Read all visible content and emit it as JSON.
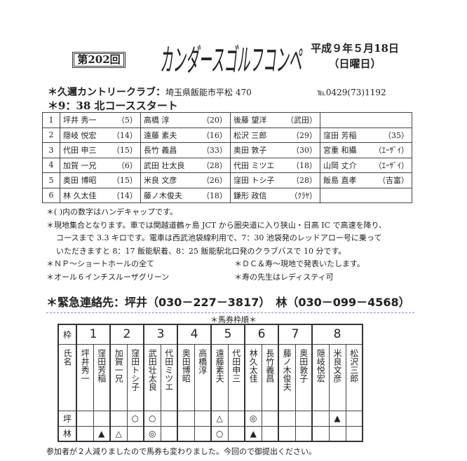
{
  "header": {
    "round": "第202回",
    "title": "カンダースゴルフコンペ",
    "date": "平成９年５月18日",
    "weekday": "（日曜日）"
  },
  "venue": {
    "name": "＊久邇カントリークラブ：",
    "address": "埼玉県飯能市平松 470",
    "tel": "℡0429(73)1192"
  },
  "start": "＊9：38 北コーススタート",
  "groups": [
    {
      "no": "1",
      "players": [
        {
          "name": "坪井 秀一",
          "hc": "（5）"
        },
        {
          "name": "高橋 淳",
          "hc": "（20）"
        },
        {
          "name": "後藤 望洋",
          "hc": "（武田）"
        },
        {
          "name": "",
          "hc": ""
        }
      ]
    },
    {
      "no": "2",
      "players": [
        {
          "name": "隠岐 悦宏",
          "hc": "（14）"
        },
        {
          "name": "遠藤 素夫",
          "hc": "（16）"
        },
        {
          "name": "松沢 三郎",
          "hc": "（29）"
        },
        {
          "name": "窪田 芳稲",
          "hc": "（35）"
        }
      ]
    },
    {
      "no": "3",
      "players": [
        {
          "name": "代田 申三",
          "hc": "（15）"
        },
        {
          "name": "長竹 義昌",
          "hc": "（33）"
        },
        {
          "name": "奥田 敦子",
          "hc": "（30）"
        },
        {
          "name": "宮重 和攝",
          "hc": "（ｴｰｻﾞｲ）"
        }
      ]
    },
    {
      "no": "4",
      "players": [
        {
          "name": "加賀 一兄",
          "hc": "（6）"
        },
        {
          "name": "武田 壮太良",
          "hc": "（28）"
        },
        {
          "name": "代田 ミツエ",
          "hc": "（18）"
        },
        {
          "name": "山岡 丈介",
          "hc": "（ｴｰｻﾞｲ）"
        }
      ]
    },
    {
      "no": "5",
      "players": [
        {
          "name": "奥田 博昭",
          "hc": "（15）"
        },
        {
          "name": "米良 文彦",
          "hc": "（26）"
        },
        {
          "name": "窪田 トシ子",
          "hc": "（28）"
        },
        {
          "name": "飯島 直孝",
          "hc": "（吉富）"
        }
      ]
    },
    {
      "no": "6",
      "players": [
        {
          "name": "林 久太佳",
          "hc": "（14）"
        },
        {
          "name": "藤ノ木俊夫",
          "hc": "（18）"
        },
        {
          "name": "鎌形 政信",
          "hc": "（ｸﾗﾔ）"
        },
        {
          "name": "",
          "hc": ""
        }
      ]
    }
  ],
  "notes": [
    "＊( )内の数字はハンデキャップです。",
    "＊現地集合となります。車では関越道鶴ヶ島 JCT から圏央道に入り狭山・日高 IC で高速を降り、",
    "コースまで 3.3 キロです。電車は西武池袋線利用で、7：30 池袋発のレッドアロー号に乗って",
    "いただきますと 8：17 飯能駅着、8：25 飯能駅北口発のクラブバスで 10 分です。"
  ],
  "notes2": [
    [
      "＊ＮＰ～ショートホールの全て",
      "＊ＤＣ＆寿～現地で発表いたします。"
    ],
    [
      "＊オール６インチスルーザグリーン",
      "＊寿の先生はレディスティ可"
    ]
  ],
  "emergency": "＊緊急連絡先：坪井（030－227－3817）　林（030－099－4568）",
  "baken": {
    "title": "＊馬券枠順＊",
    "waku_label": "枠",
    "name_label": "氏名",
    "row_labels": [
      "坪",
      "林"
    ],
    "frames": [
      {
        "no": "1",
        "span": 2
      },
      {
        "no": "2",
        "span": 2
      },
      {
        "no": "3",
        "span": 2
      },
      {
        "no": "4",
        "span": 2
      },
      {
        "no": "5",
        "span": 2
      },
      {
        "no": "6",
        "span": 2
      },
      {
        "no": "7",
        "span": 2
      },
      {
        "no": "8",
        "span": 3
      }
    ],
    "names": [
      "坪井秀一",
      "窪田芳稲",
      "加賀一兄",
      "窪田トシ子",
      "武田壮太良",
      "代田ミツエ",
      "奥田博昭",
      "高橋淳",
      "遠藤素夫",
      "代田申三",
      "林久太佳",
      "長竹義昌",
      "藤ノ木俊夫",
      "奥田敦子",
      "隠岐悦宏",
      "米良文彦",
      "松沢三郎"
    ],
    "tsuboi": [
      "",
      "",
      "",
      "○",
      "○",
      "",
      "",
      "",
      "△",
      "",
      "◎",
      "",
      "",
      "",
      "",
      "▲",
      ""
    ],
    "hayashi": [
      "",
      "▲",
      "△",
      "",
      "◎",
      "",
      "",
      "",
      "○",
      "",
      "▲",
      "",
      "",
      "",
      "",
      "",
      ""
    ]
  },
  "footer": "参加者が２人減りましたので馬券も変わりました。今回ので御提出ください。"
}
